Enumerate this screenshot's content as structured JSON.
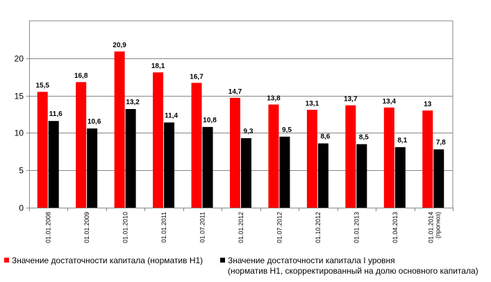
{
  "chart_data": {
    "type": "bar",
    "categories": [
      "01.01.2008",
      "01.01.2009",
      "01.01.2010",
      "01.01.2011",
      "01.07.2011",
      "01.01.2012",
      "01.07.2012",
      "01.10.2012",
      "01.01.2013",
      "01.04.2013",
      "01.01.2014 (прогноз)"
    ],
    "series": [
      {
        "name": "Значение достаточности капитала (норматив Н1)",
        "values": [
          15.5,
          16.8,
          20.9,
          18.1,
          16.7,
          14.7,
          13.8,
          13.1,
          13.7,
          13.4,
          13
        ],
        "labels": [
          "15,5",
          "16,8",
          "20,9",
          "18,1",
          "16,7",
          "14,7",
          "13,8",
          "13,1",
          "13,7",
          "13,4",
          "13"
        ],
        "color": "#ff0000"
      },
      {
        "name": "Значение достаточности капитала I уровня (норматив Н1, скорректированный на долю основного капитала)",
        "values": [
          11.6,
          10.6,
          13.2,
          11.4,
          10.8,
          9.3,
          9.5,
          8.6,
          8.5,
          8.1,
          7.8
        ],
        "labels": [
          "11,6",
          "10,6",
          "13,2",
          "11,4",
          "10,8",
          "9,3",
          "9,5",
          "8,6",
          "8,5",
          "8,1",
          "7,8"
        ],
        "color": "#000000"
      }
    ],
    "ylim": [
      0,
      25
    ],
    "yticks": [
      0,
      5,
      10,
      15,
      20
    ],
    "grid": true,
    "legend_position": "bottom"
  },
  "legend": {
    "item1": "Значение достаточности капитала (норматив Н1)",
    "item2_line1": "Значение достаточности капитала I уровня",
    "item2_line2": "(норматив Н1, скорректированный на долю основного капитала)"
  }
}
